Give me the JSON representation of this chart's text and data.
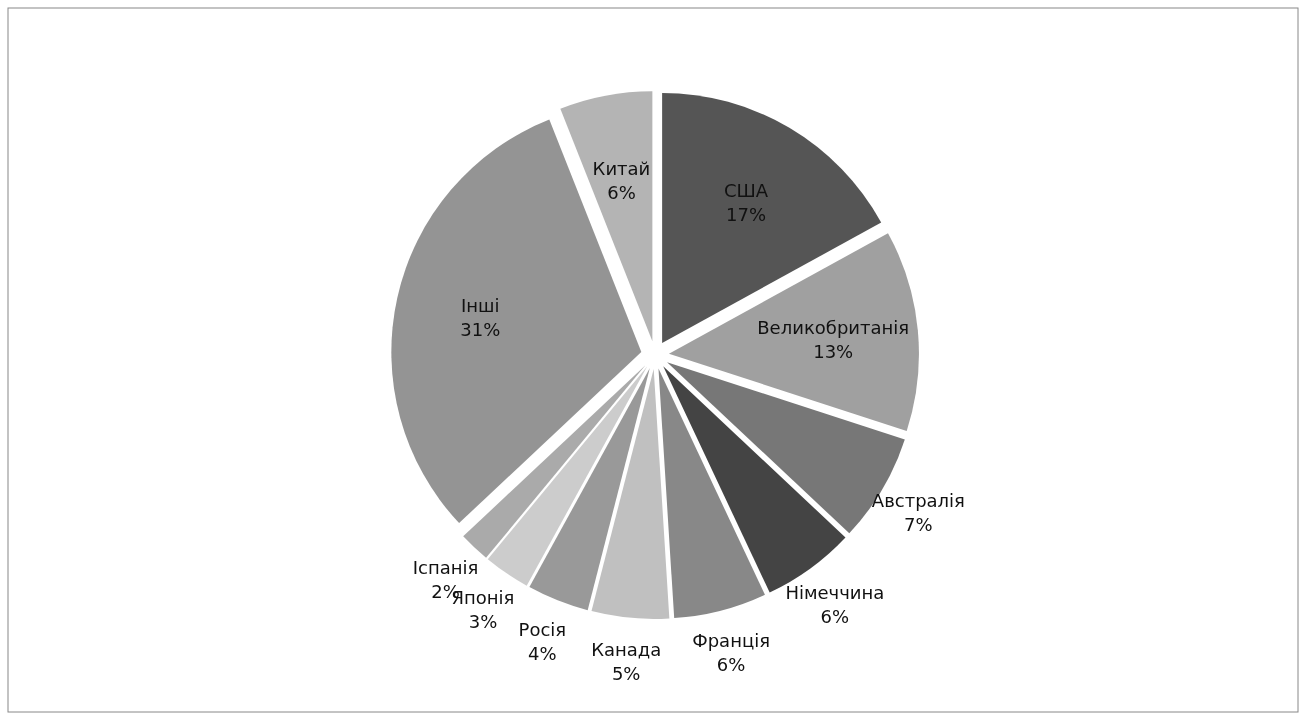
{
  "chart_data": {
    "type": "pie",
    "categories": [
      "США",
      "Великобританія",
      "Австралія",
      "Німеччина",
      "Франція",
      "Канада",
      "Росія",
      "Японія",
      "Іспанія",
      "Інші",
      "Китай"
    ],
    "values": [
      17,
      13,
      7,
      6,
      6,
      5,
      4,
      3,
      2,
      31,
      6
    ],
    "value_labels": [
      "17%",
      "13%",
      "7%",
      "6%",
      "6%",
      "5%",
      "4%",
      "3%",
      "2%",
      "31%",
      "6%"
    ],
    "colors": [
      "#555555",
      "#a0a0a0",
      "#777777",
      "#444444",
      "#888888",
      "#c0c0c0",
      "#999999",
      "#cccccc",
      "#aaaaaa",
      "#949494",
      "#b4b4b4"
    ]
  }
}
